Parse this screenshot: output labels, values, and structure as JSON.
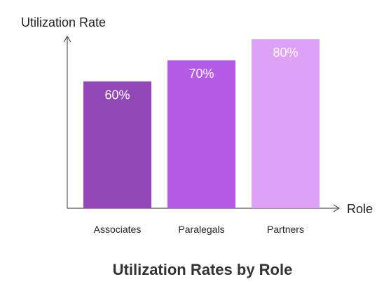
{
  "chart_data": {
    "type": "bar",
    "title": "Utilization Rates by Role",
    "xlabel": "Role",
    "ylabel": "Utilization Rate",
    "categories": [
      "Associates",
      "Paralegals",
      "Partners"
    ],
    "values": [
      60,
      70,
      80
    ],
    "data_labels": [
      "60%",
      "70%",
      "80%"
    ],
    "colors": [
      "#9347b9",
      "#b65be8",
      "#dea1f8"
    ],
    "ylim": [
      0,
      100
    ],
    "grid": false,
    "legend": "none"
  }
}
